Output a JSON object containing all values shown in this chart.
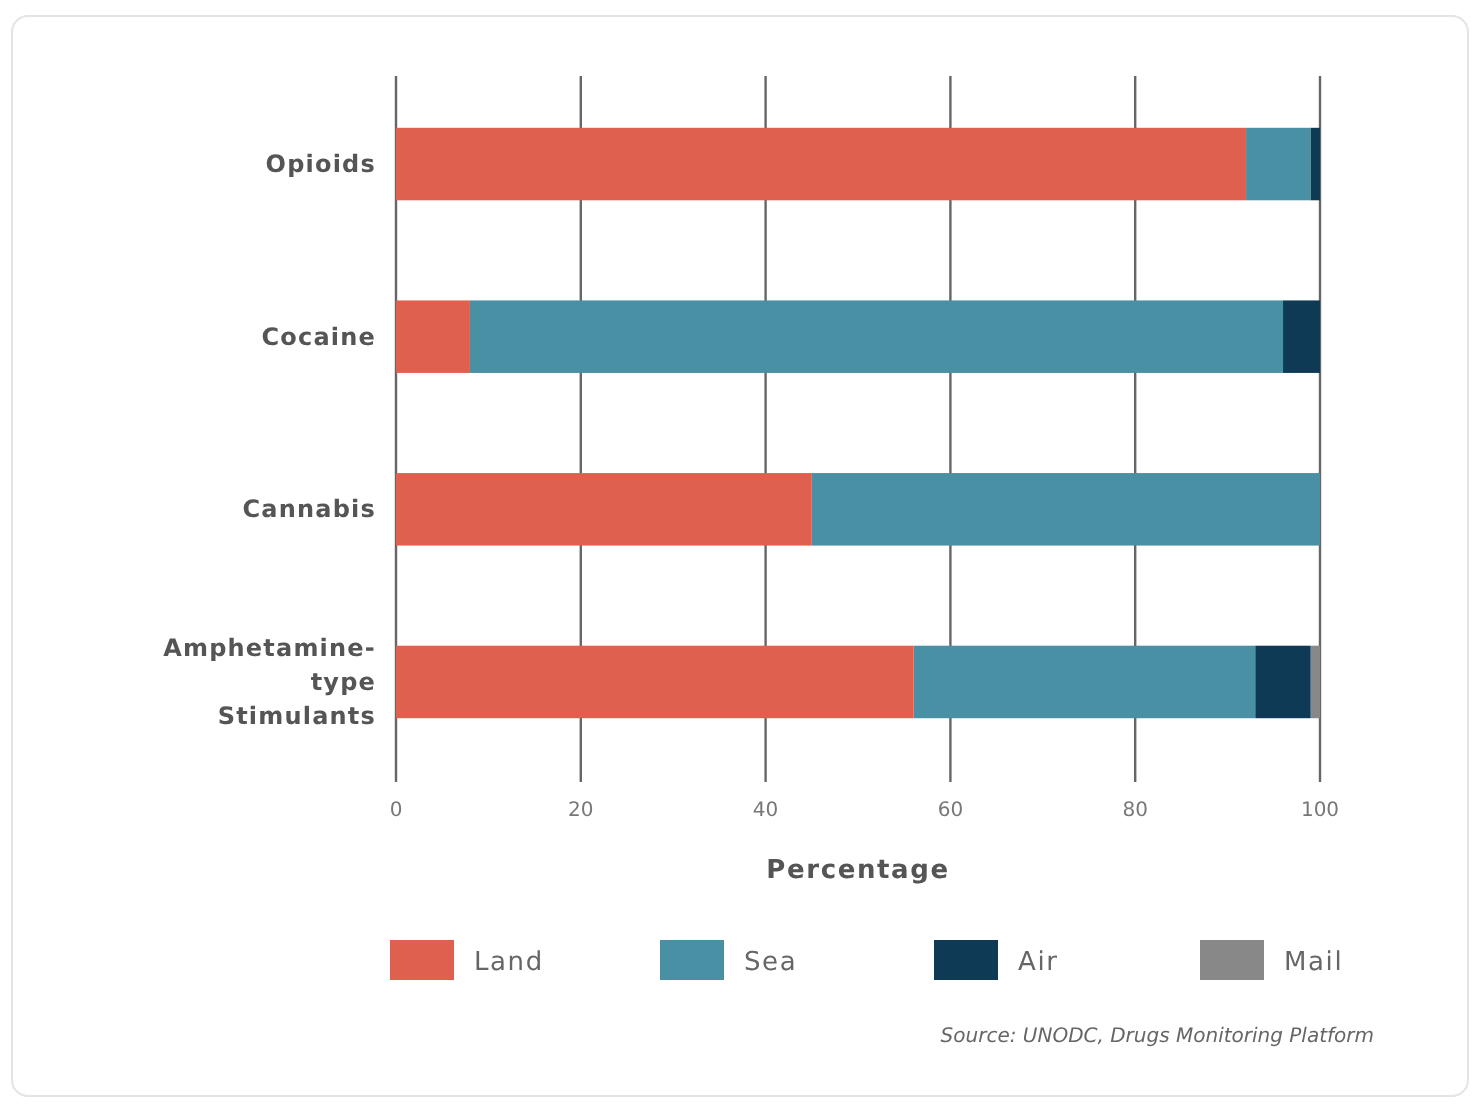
{
  "chart_data": {
    "type": "bar",
    "orientation": "horizontal",
    "stacked": true,
    "xlabel": "Percentage",
    "categories": [
      "Opioids",
      "Cocaine",
      "Cannabis",
      "Amphetamine-type Stimulants"
    ],
    "series": [
      {
        "name": "Land",
        "color": "#e0604f",
        "values": [
          92,
          8,
          45,
          56
        ]
      },
      {
        "name": "Sea",
        "color": "#4a90a4",
        "values": [
          7,
          88,
          55,
          37
        ]
      },
      {
        "name": "Air",
        "color": "#0e3a56",
        "values": [
          1,
          4,
          0,
          6
        ]
      },
      {
        "name": "Mail",
        "color": "#888888",
        "values": [
          0,
          0,
          0,
          1
        ]
      }
    ],
    "xlim": [
      0,
      100
    ],
    "xticks": [
      0,
      20,
      40,
      60,
      80,
      100
    ],
    "grid": "x",
    "legend": "bottom",
    "annotations": [
      "Source: UNODC, Drugs Monitoring Platform"
    ]
  }
}
